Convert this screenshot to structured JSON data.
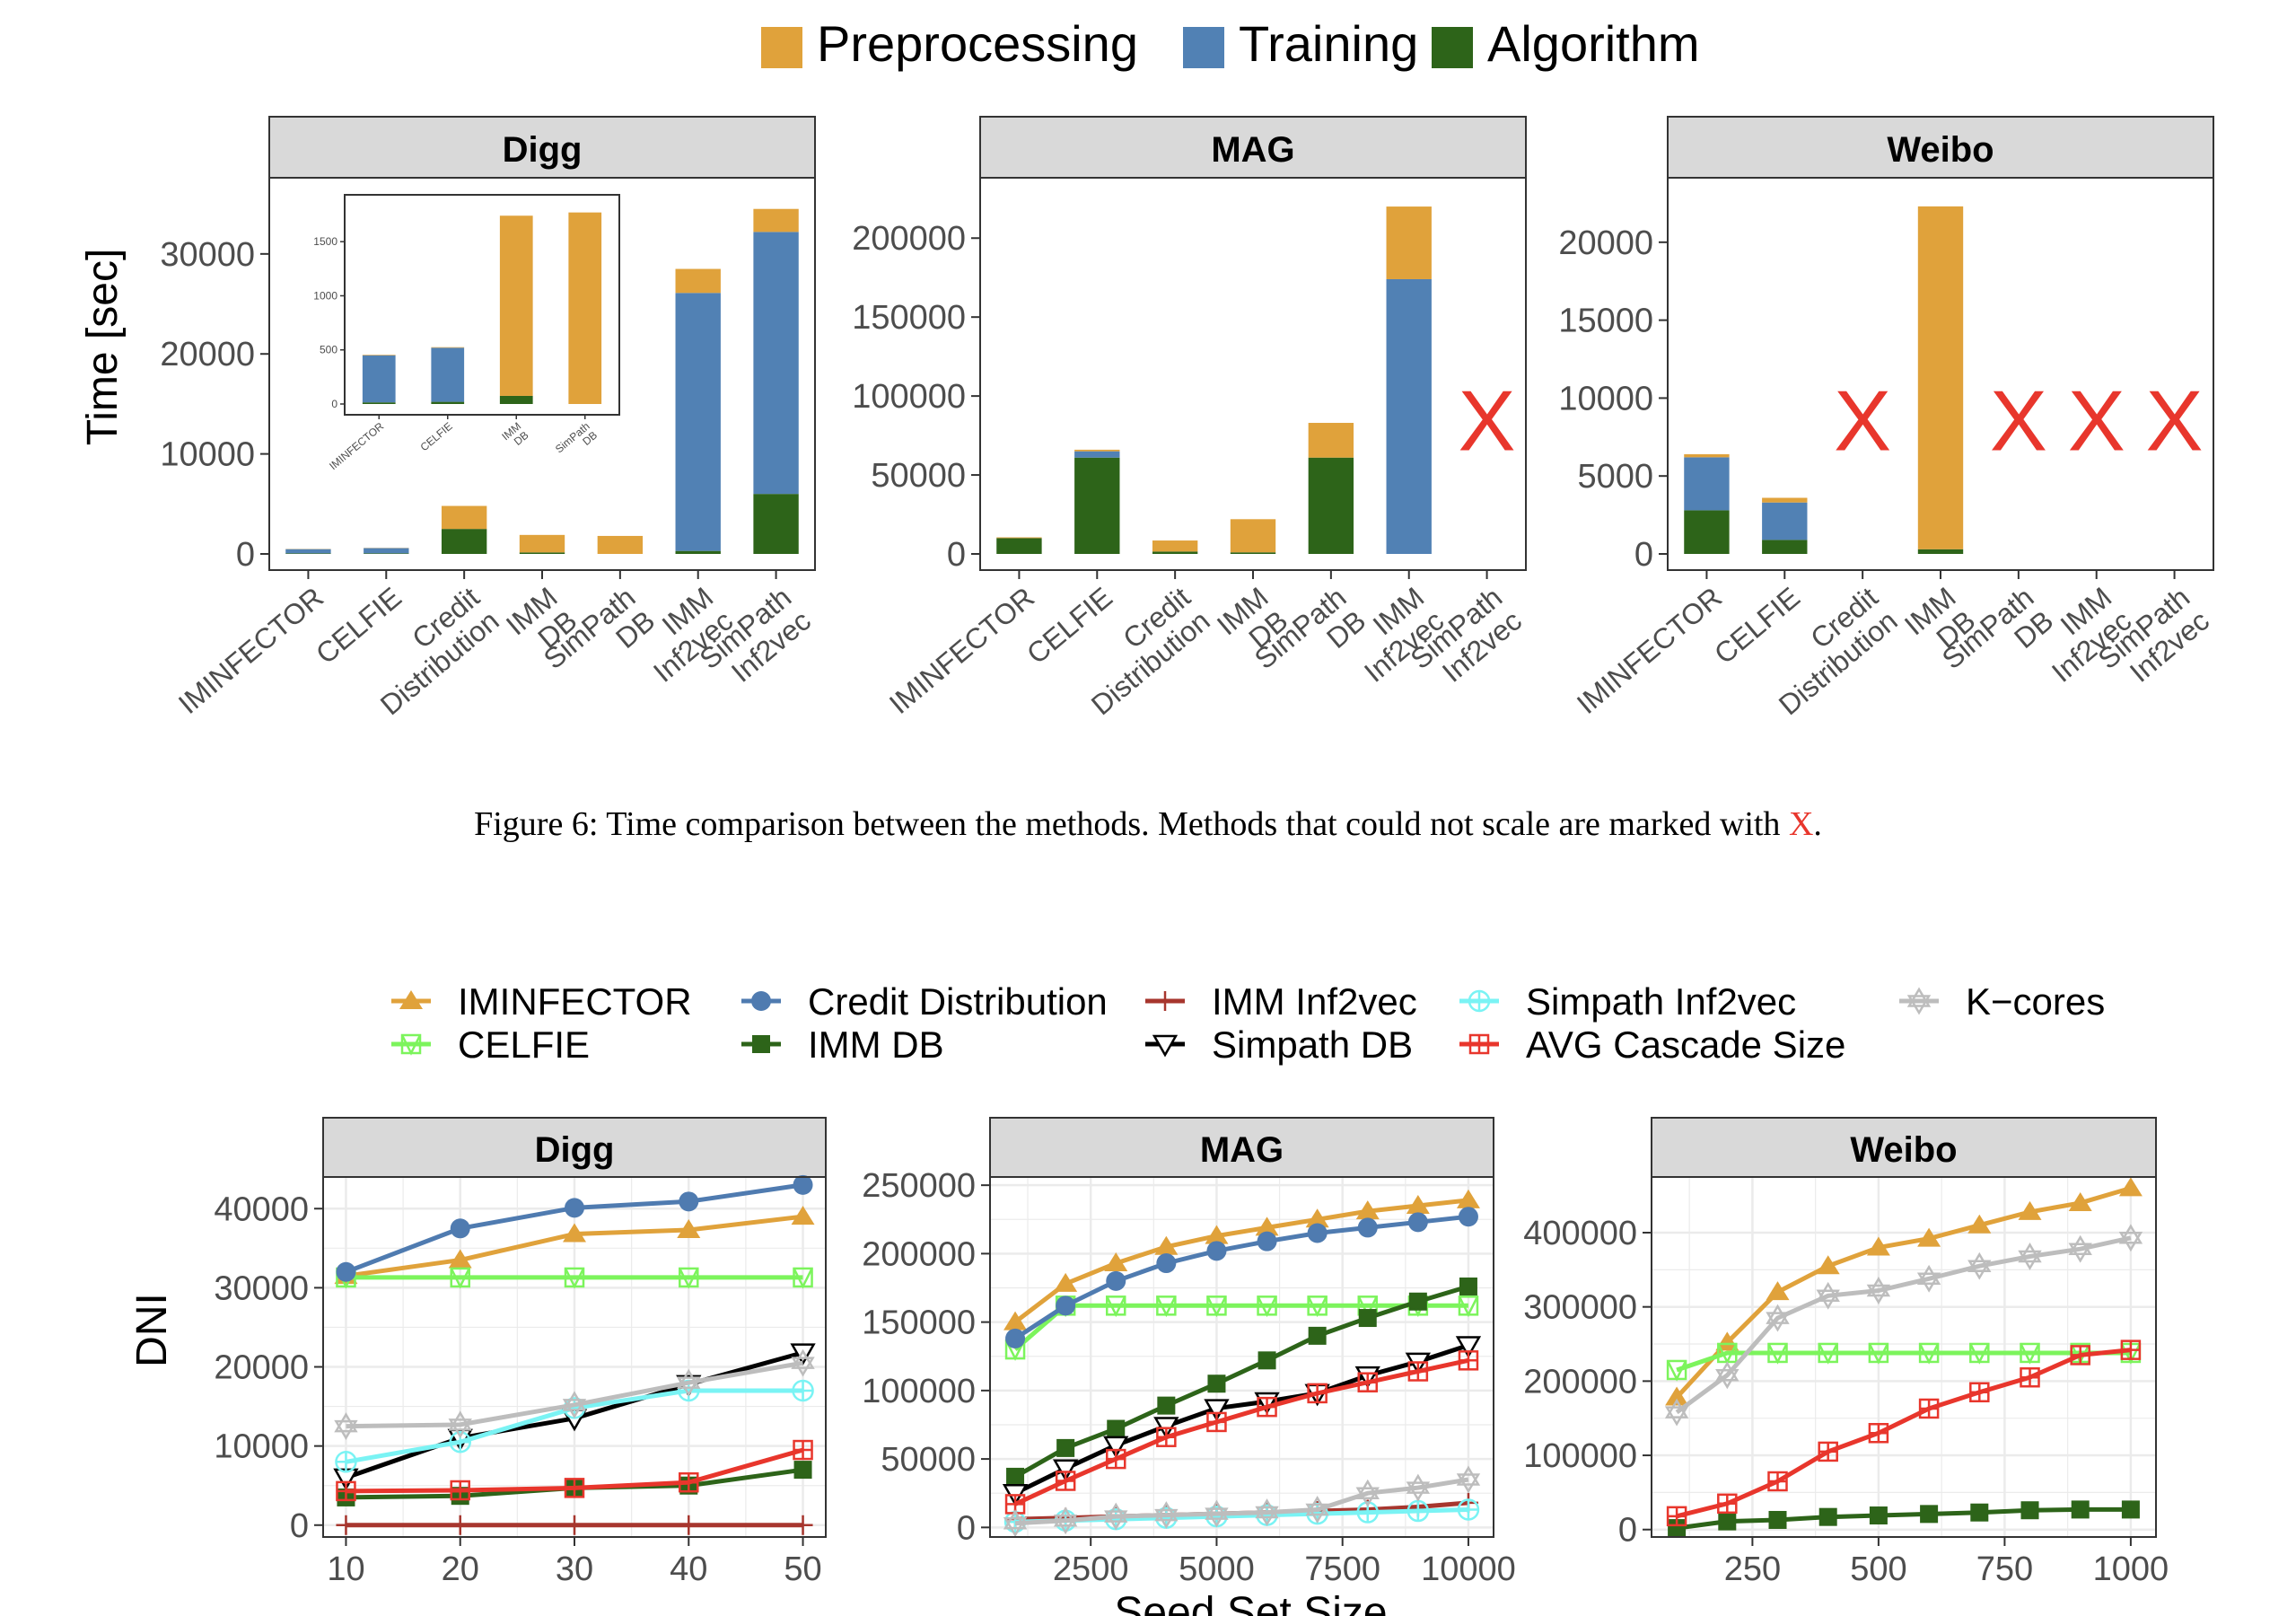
{
  "caption": {
    "text": "Figure 6: Time comparison between the methods. Methods that could not scale are marked with ",
    "mark": "X",
    "end": "."
  },
  "colors": {
    "preprocessing": "#E0A23B",
    "training": "#5181B4",
    "algorithm": "#2D6419",
    "x_mark": "#E8362C",
    "strip_bg": "#D9D9D9",
    "grid": "#EBEBEB",
    "IMINFECTOR": "#E0A23B",
    "CELFIE": "#7CF45C",
    "Credit Distribution": "#4F7BB0",
    "IMM Inf2vec": "#A7362E",
    "IMM DB": "#2D6419",
    "Simpath DB": "#000000",
    "Simpath Inf2vec": "#7AF3F4",
    "AVG Cascade Size": "#E8362C",
    "K-cores": "#BDBDBD"
  },
  "chart_data": [
    {
      "type": "bar",
      "title": "Digg",
      "ylabel": "Time [sec]",
      "ylim": [
        0,
        36000
      ],
      "yticks": [
        0,
        10000,
        20000,
        30000
      ],
      "categories": [
        "IMINFECTOR",
        "CELFIE",
        "Credit\nDistribution",
        "IMM\nDB",
        "SimPath\nDB",
        "IMM\nInf2vec",
        "SimPath\nInf2vec"
      ],
      "legend": [
        "Preprocessing",
        "Training",
        "Algorithm"
      ],
      "series": [
        {
          "name": "Algorithm",
          "values": [
            60,
            60,
            2500,
            150,
            0,
            300,
            6000
          ]
        },
        {
          "name": "Training",
          "values": [
            420,
            520,
            0,
            0,
            0,
            25800,
            26200
          ]
        },
        {
          "name": "Preprocessing",
          "values": [
            20,
            20,
            2300,
            1750,
            1800,
            2400,
            2300
          ]
        }
      ],
      "not_scaled": [],
      "inset": {
        "ylim": [
          0,
          1850
        ],
        "yticks": [
          0,
          500,
          1000,
          1500
        ],
        "categories": [
          "IMINFECTOR",
          "CELFIE",
          "IMM\nDB",
          "SimPath\nDB"
        ],
        "series": [
          {
            "name": "Algorithm",
            "values": [
              15,
              20,
              75,
              0
            ]
          },
          {
            "name": "Training",
            "values": [
              435,
              500,
              0,
              0
            ]
          },
          {
            "name": "Preprocessing",
            "values": [
              5,
              5,
              1665,
              1770
            ]
          }
        ]
      }
    },
    {
      "type": "bar",
      "title": "MAG",
      "ylim": [
        0,
        228000
      ],
      "yticks": [
        0,
        50000,
        100000,
        150000,
        200000
      ],
      "categories": [
        "IMINFECTOR",
        "CELFIE",
        "Credit\nDistribution",
        "IMM\nDB",
        "SimPath\nDB",
        "IMM\nInf2vec",
        "SimPath\nInf2vec"
      ],
      "series": [
        {
          "name": "Algorithm",
          "values": [
            10000,
            61000,
            1500,
            1000,
            61000,
            0,
            0
          ]
        },
        {
          "name": "Training",
          "values": [
            0,
            4000,
            0,
            0,
            0,
            174000,
            0
          ]
        },
        {
          "name": "Preprocessing",
          "values": [
            500,
            1000,
            7000,
            21000,
            22000,
            46000,
            0
          ]
        }
      ],
      "not_scaled": [
        6
      ]
    },
    {
      "type": "bar",
      "title": "Weibo",
      "ylim": [
        0,
        23100
      ],
      "yticks": [
        0,
        5000,
        10000,
        15000,
        20000
      ],
      "categories": [
        "IMINFECTOR",
        "CELFIE",
        "Credit\nDistribution",
        "IMM\nDB",
        "SimPath\nDB",
        "IMM\nInf2vec",
        "SimPath\nInf2vec"
      ],
      "series": [
        {
          "name": "Algorithm",
          "values": [
            2800,
            900,
            0,
            300,
            0,
            0,
            0
          ]
        },
        {
          "name": "Training",
          "values": [
            3400,
            2400,
            0,
            0,
            0,
            0,
            0
          ]
        },
        {
          "name": "Preprocessing",
          "values": [
            200,
            300,
            0,
            22000,
            0,
            0,
            0
          ]
        }
      ],
      "not_scaled": [
        2,
        4,
        5,
        6
      ]
    },
    {
      "type": "line",
      "title": "Digg",
      "ylabel": "DNI",
      "xlim": [
        8,
        52
      ],
      "ylim": [
        -1500,
        44000
      ],
      "xticks": [
        10,
        20,
        30,
        40,
        50
      ],
      "yticks": [
        0,
        10000,
        20000,
        30000,
        40000
      ],
      "x": [
        10,
        20,
        30,
        40,
        50
      ],
      "series": [
        {
          "name": "IMINFECTOR",
          "values": [
            31500,
            33500,
            36800,
            37300,
            39000
          ]
        },
        {
          "name": "CELFIE",
          "values": [
            31300,
            31300,
            31300,
            31300,
            31300
          ]
        },
        {
          "name": "Credit Distribution",
          "values": [
            32000,
            37500,
            40100,
            40900,
            43000
          ]
        },
        {
          "name": "IMM DB",
          "values": [
            3500,
            3700,
            4700,
            5000,
            7000
          ]
        },
        {
          "name": "IMM Inf2vec",
          "values": [
            0,
            0,
            0,
            0,
            0
          ]
        },
        {
          "name": "Simpath DB",
          "values": [
            6000,
            11000,
            13500,
            17800,
            21800
          ]
        },
        {
          "name": "Simpath Inf2vec",
          "values": [
            8000,
            10500,
            14800,
            17000,
            17000
          ]
        },
        {
          "name": "AVG Cascade Size",
          "values": [
            4300,
            4400,
            4700,
            5400,
            9500
          ]
        },
        {
          "name": "K-cores",
          "values": [
            12500,
            12700,
            15200,
            18000,
            20500
          ]
        }
      ]
    },
    {
      "type": "line",
      "title": "MAG",
      "xlabel": "Seed Set Size",
      "xlim": [
        500,
        10500
      ],
      "ylim": [
        -7000,
        256000
      ],
      "xticks": [
        2500,
        5000,
        7500,
        10000
      ],
      "yticks": [
        0,
        50000,
        100000,
        150000,
        200000,
        250000
      ],
      "x": [
        1000,
        2000,
        3000,
        4000,
        5000,
        6000,
        7000,
        8000,
        9000,
        10000
      ],
      "series": [
        {
          "name": "IMINFECTOR",
          "values": [
            150000,
            178000,
            193000,
            205000,
            213000,
            219000,
            225000,
            231000,
            235000,
            239000
          ]
        },
        {
          "name": "CELFIE",
          "values": [
            130000,
            162000,
            162000,
            162000,
            162000,
            162000,
            162000,
            162000,
            162000,
            162000
          ]
        },
        {
          "name": "Credit Distribution",
          "values": [
            138000,
            162000,
            180000,
            193000,
            202000,
            209000,
            215000,
            219000,
            223000,
            227000
          ]
        },
        {
          "name": "IMM DB",
          "values": [
            37000,
            58000,
            72000,
            89000,
            105000,
            122000,
            140000,
            153000,
            165000,
            176000
          ]
        },
        {
          "name": "IMM Inf2vec",
          "values": [
            6000,
            7000,
            8000,
            9000,
            10000,
            11000,
            12000,
            13000,
            15000,
            18000
          ]
        },
        {
          "name": "Simpath DB",
          "values": [
            25000,
            43000,
            60000,
            74000,
            87000,
            92000,
            98000,
            111000,
            121000,
            133000
          ]
        },
        {
          "name": "Simpath Inf2vec",
          "values": [
            4000,
            5000,
            6000,
            7000,
            8000,
            9000,
            10000,
            11000,
            12000,
            13000
          ]
        },
        {
          "name": "AVG Cascade Size",
          "values": [
            17000,
            34000,
            50000,
            66000,
            77000,
            88000,
            98000,
            106000,
            114000,
            122000
          ]
        },
        {
          "name": "K-cores",
          "values": [
            3000,
            5000,
            8000,
            9000,
            10000,
            11000,
            13000,
            25000,
            29000,
            35000
          ]
        }
      ]
    },
    {
      "type": "line",
      "title": "Weibo",
      "xlim": [
        50,
        1050
      ],
      "ylim": [
        -10000,
        475000
      ],
      "xticks": [
        250,
        500,
        750,
        1000
      ],
      "yticks": [
        0,
        100000,
        200000,
        300000,
        400000
      ],
      "x": [
        100,
        200,
        300,
        400,
        500,
        600,
        700,
        800,
        900,
        1000
      ],
      "series": [
        {
          "name": "IMINFECTOR",
          "values": [
            178000,
            252000,
            320000,
            355000,
            380000,
            392000,
            410000,
            428000,
            440000,
            460000
          ]
        },
        {
          "name": "CELFIE",
          "values": [
            215000,
            238000,
            238000,
            238000,
            238000,
            238000,
            238000,
            238000,
            238000,
            238000
          ]
        },
        {
          "name": "IMM DB",
          "values": [
            2000,
            11000,
            13000,
            17000,
            19000,
            21000,
            23000,
            26000,
            27000,
            27000
          ]
        },
        {
          "name": "AVG Cascade Size",
          "values": [
            18000,
            35000,
            65000,
            105000,
            130000,
            163000,
            185000,
            205000,
            235000,
            242000
          ]
        },
        {
          "name": "K-cores",
          "values": [
            158000,
            208000,
            285000,
            315000,
            322000,
            338000,
            355000,
            368000,
            378000,
            393000
          ]
        }
      ]
    }
  ],
  "legend_lines": [
    {
      "name": "IMINFECTOR",
      "label": "IMINFECTOR",
      "shape": "triangle-filled"
    },
    {
      "name": "CELFIE",
      "label": "CELFIE",
      "shape": "square-x-open"
    },
    {
      "name": "Credit Distribution",
      "label": "Credit Distribution",
      "shape": "circle-filled"
    },
    {
      "name": "IMM DB",
      "label": "IMM DB",
      "shape": "square-filled"
    },
    {
      "name": "IMM Inf2vec",
      "label": "IMM Inf2vec",
      "shape": "plus"
    },
    {
      "name": "Simpath DB",
      "label": "Simpath DB",
      "shape": "triangle-down-open"
    },
    {
      "name": "Simpath Inf2vec",
      "label": "Simpath Inf2vec",
      "shape": "circle-plus-open"
    },
    {
      "name": "AVG Cascade Size",
      "label": "AVG Cascade Size",
      "shape": "square-plus-open"
    },
    {
      "name": "K-cores",
      "label": "K−cores",
      "shape": "star-open"
    }
  ]
}
